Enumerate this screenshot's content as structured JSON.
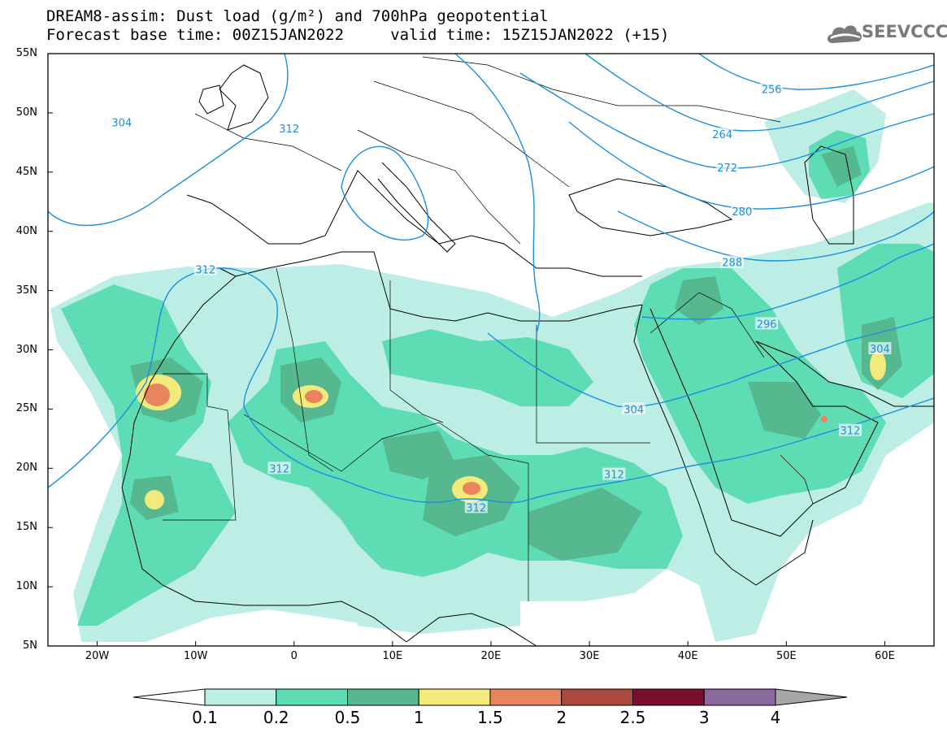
{
  "title_line1": "DREAM8-assim: Dust load (g/m²) and 700hPa geopotential",
  "title_line2": "Forecast base time: 00Z15JAN2022     valid time: 15Z15JAN2022 (+15)",
  "logo_text": "SEEVCCC",
  "lat_labels": [
    "55N",
    "50N",
    "45N",
    "40N",
    "35N",
    "30N",
    "25N",
    "20N",
    "15N",
    "10N",
    "5N"
  ],
  "lon_labels": [
    "20W",
    "10W",
    "0",
    "10E",
    "20E",
    "30E",
    "40E",
    "50E",
    "60E"
  ],
  "contour_labels": [
    {
      "text": "304",
      "lon": -17.5,
      "lat": 49.2
    },
    {
      "text": "312",
      "lon": -0.5,
      "lat": 48.7
    },
    {
      "text": "312",
      "lon": -9,
      "lat": 36.8
    },
    {
      "text": "312",
      "lon": -1.5,
      "lat": 20.0
    },
    {
      "text": "312",
      "lon": 18.5,
      "lat": 16.7
    },
    {
      "text": "312",
      "lon": 32.5,
      "lat": 19.5
    },
    {
      "text": "304",
      "lon": 34.5,
      "lat": 25.0
    },
    {
      "text": "312",
      "lon": 56.5,
      "lat": 23.2
    },
    {
      "text": "304",
      "lon": 59.5,
      "lat": 30.1
    },
    {
      "text": "296",
      "lon": 48,
      "lat": 32.2
    },
    {
      "text": "288",
      "lon": 44.5,
      "lat": 37.4
    },
    {
      "text": "280",
      "lon": 45.5,
      "lat": 41.7
    },
    {
      "text": "272",
      "lon": 44,
      "lat": 45.4
    },
    {
      "text": "264",
      "lon": 43.5,
      "lat": 48.2
    },
    {
      "text": "256",
      "lon": 48.5,
      "lat": 52.0
    }
  ],
  "colorbar": {
    "labels": [
      "0.1",
      "0.2",
      "0.5",
      "1",
      "1.5",
      "2",
      "2.5",
      "3",
      "4"
    ],
    "colors": [
      "#bdeee6",
      "#5edcb4",
      "#55b88e",
      "#f3ea7c",
      "#e8845e",
      "#aa4a3c",
      "#7a0e2e",
      "#8a6a9e",
      "#a6a6a6"
    ],
    "under_color": "#ffffff"
  }
}
